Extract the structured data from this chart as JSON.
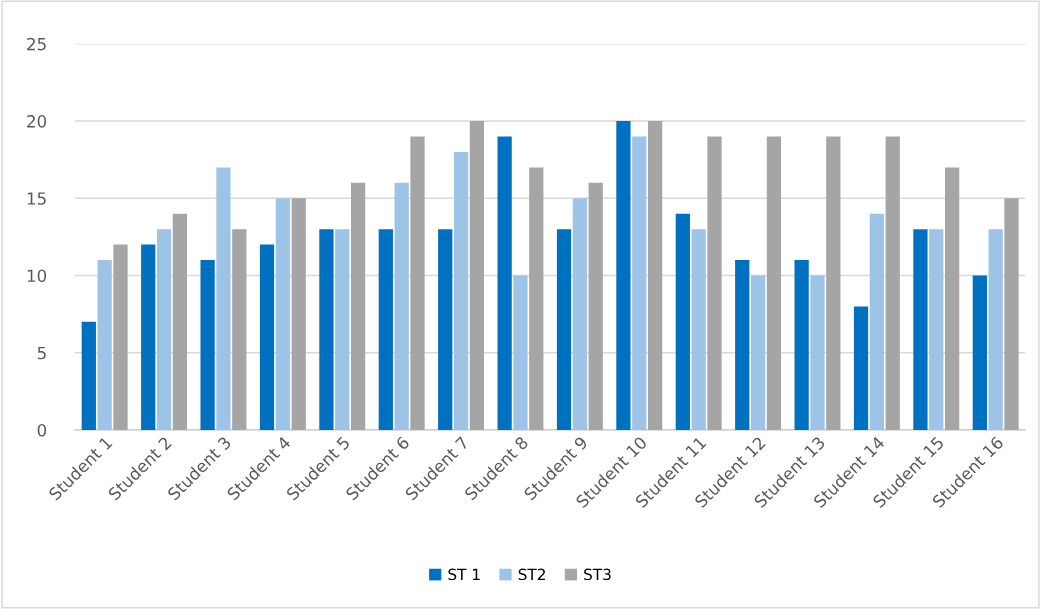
{
  "chart_data": {
    "type": "bar",
    "categories": [
      "Student 1",
      "Student 2",
      "Student 3",
      "Student 4",
      "Student 5",
      "Student 6",
      "Student 7",
      "Student 8",
      "Student 9",
      "Student 10",
      "Student 11",
      "Student 12",
      "Student 13",
      "Student 14",
      "Student 15",
      "Student 16"
    ],
    "series": [
      {
        "name": "ST 1",
        "color": "#0070c0",
        "values": [
          7,
          12,
          11,
          12,
          13,
          13,
          13,
          19,
          13,
          20,
          14,
          11,
          11,
          8,
          13,
          10
        ]
      },
      {
        "name": "ST2",
        "color": "#9dc3e6",
        "values": [
          11,
          13,
          17,
          15,
          13,
          16,
          18,
          10,
          15,
          19,
          13,
          10,
          10,
          14,
          13,
          13
        ]
      },
      {
        "name": "ST3",
        "color": "#a5a5a5",
        "values": [
          12,
          14,
          13,
          15,
          16,
          19,
          20,
          17,
          16,
          20,
          19,
          19,
          19,
          19,
          17,
          15
        ]
      }
    ],
    "ylim": [
      0,
      25
    ],
    "yticks": [
      0,
      5,
      10,
      15,
      20,
      25
    ],
    "grid": "y",
    "legend": "bottom"
  }
}
